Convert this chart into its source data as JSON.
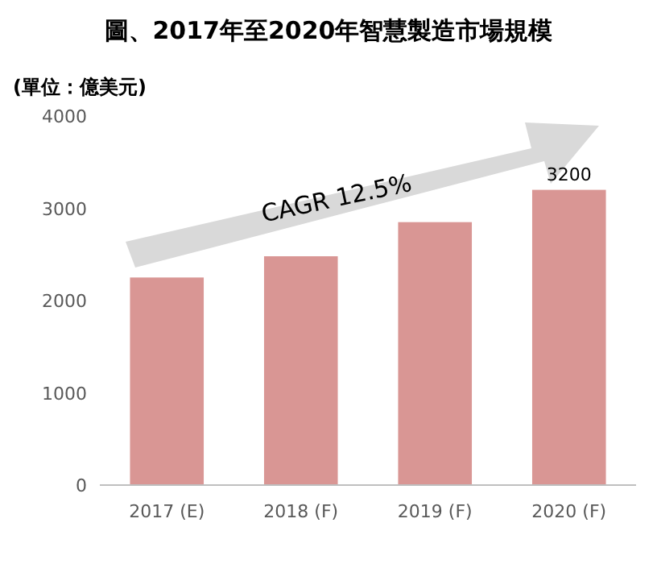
{
  "chart_data": {
    "type": "bar",
    "title": "圖、2017年至2020年智慧製造市場規模",
    "ylabel": "(單位：億美元)",
    "categories": [
      "2017 (E)",
      "2018 (F)",
      "2019 (F)",
      "2020 (F)"
    ],
    "values": [
      2250,
      2480,
      2850,
      3200
    ],
    "value_labels": [
      null,
      null,
      null,
      "3200"
    ],
    "color": "#d99694",
    "ylim": [
      0,
      4000
    ],
    "yticks": [
      0,
      1000,
      2000,
      3000,
      4000
    ],
    "annotations": [
      "CAGR 12.5%"
    ]
  }
}
